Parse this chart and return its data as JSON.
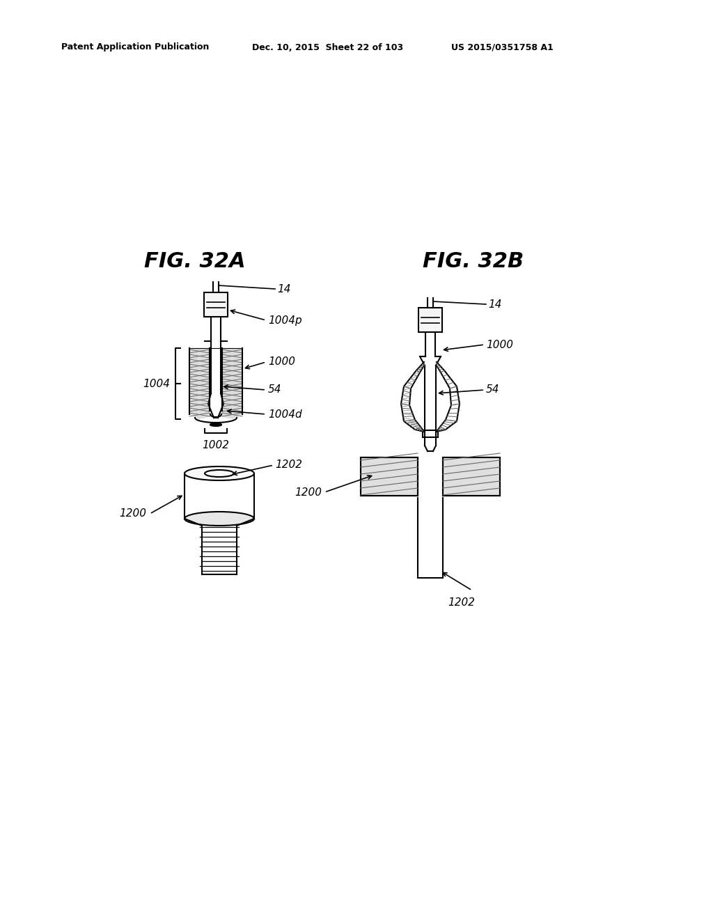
{
  "background_color": "#ffffff",
  "header_left": "Patent Application Publication",
  "header_mid": "Dec. 10, 2015  Sheet 22 of 103",
  "header_right": "US 2015/0351758 A1",
  "fig_a_title": "FIG. 32A",
  "fig_b_title": "FIG. 32B",
  "line_color": "#000000"
}
